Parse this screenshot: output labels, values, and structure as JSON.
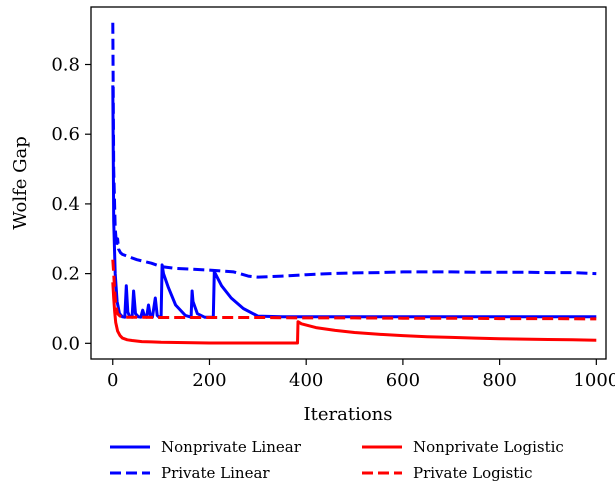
{
  "chart_data": {
    "type": "line",
    "xlabel": "Iterations",
    "ylabel": "Wolfe Gap",
    "xlim": [
      -45,
      1020
    ],
    "ylim": [
      -0.045,
      0.965
    ],
    "x_ticks": [
      0,
      200,
      400,
      600,
      800,
      1000
    ],
    "x_tick_labels": [
      "0",
      "200",
      "400",
      "600",
      "800",
      "1000"
    ],
    "y_ticks": [
      0.0,
      0.2,
      0.4,
      0.6,
      0.8
    ],
    "y_tick_labels": [
      "0.0",
      "0.2",
      "0.4",
      "0.6",
      "0.8"
    ],
    "grid": false,
    "legend_position": "below",
    "series": [
      {
        "name": "Nonprivate Linear",
        "color": "#0000ff",
        "style": "solid",
        "x": [
          0,
          2,
          5,
          9,
          14,
          20,
          25,
          28,
          31,
          35,
          40,
          43,
          47,
          53,
          58,
          62,
          66,
          70,
          74,
          78,
          82,
          88,
          92,
          96,
          100,
          102,
          105,
          115,
          130,
          150,
          162,
          164,
          166,
          175,
          190,
          208,
          210,
          212,
          225,
          245,
          270,
          300,
          350,
          400,
          500,
          600,
          700,
          800,
          900,
          1000
        ],
        "y": [
          0.74,
          0.35,
          0.2,
          0.12,
          0.085,
          0.076,
          0.075,
          0.165,
          0.09,
          0.076,
          0.075,
          0.15,
          0.085,
          0.076,
          0.075,
          0.095,
          0.076,
          0.075,
          0.11,
          0.076,
          0.075,
          0.13,
          0.08,
          0.075,
          0.075,
          0.225,
          0.2,
          0.16,
          0.11,
          0.08,
          0.075,
          0.15,
          0.12,
          0.085,
          0.075,
          0.075,
          0.205,
          0.2,
          0.165,
          0.13,
          0.1,
          0.078,
          0.076,
          0.076,
          0.076,
          0.076,
          0.076,
          0.076,
          0.076,
          0.076
        ]
      },
      {
        "name": "Private Linear",
        "color": "#0000ff",
        "style": "dashed",
        "x": [
          0,
          2,
          5,
          8,
          10,
          12,
          16,
          20,
          30,
          50,
          80,
          100,
          130,
          160,
          200,
          230,
          250,
          280,
          300,
          350,
          400,
          450,
          500,
          550,
          600,
          650,
          700,
          750,
          800,
          850,
          900,
          950,
          1000
        ],
        "y": [
          0.92,
          0.5,
          0.33,
          0.28,
          0.3,
          0.27,
          0.26,
          0.255,
          0.25,
          0.24,
          0.23,
          0.22,
          0.215,
          0.213,
          0.21,
          0.207,
          0.205,
          0.193,
          0.19,
          0.193,
          0.197,
          0.2,
          0.202,
          0.203,
          0.205,
          0.205,
          0.205,
          0.204,
          0.204,
          0.204,
          0.203,
          0.203,
          0.2
        ]
      },
      {
        "name": "Nonprivate Logistic",
        "color": "#ff0000",
        "style": "solid",
        "x": [
          0,
          2,
          4,
          6,
          10,
          15,
          20,
          30,
          40,
          60,
          80,
          100,
          150,
          200,
          250,
          300,
          350,
          382,
          383,
          390,
          420,
          460,
          500,
          550,
          600,
          650,
          700,
          750,
          800,
          850,
          900,
          950,
          1000
        ],
        "y": [
          0.175,
          0.13,
          0.09,
          0.06,
          0.035,
          0.022,
          0.015,
          0.01,
          0.008,
          0.005,
          0.004,
          0.003,
          0.002,
          0.001,
          0.001,
          0.001,
          0.001,
          0.001,
          0.062,
          0.056,
          0.045,
          0.037,
          0.031,
          0.026,
          0.022,
          0.019,
          0.017,
          0.015,
          0.013,
          0.012,
          0.011,
          0.01,
          0.009
        ]
      },
      {
        "name": "Private Logistic",
        "color": "#ff0000",
        "style": "dashed",
        "x": [
          0,
          2,
          4,
          6,
          10,
          15,
          20,
          30,
          50,
          100,
          200,
          300,
          400,
          500,
          600,
          700,
          800,
          900,
          1000
        ],
        "y": [
          0.24,
          0.2,
          0.15,
          0.11,
          0.085,
          0.078,
          0.076,
          0.075,
          0.075,
          0.074,
          0.074,
          0.074,
          0.073,
          0.073,
          0.072,
          0.072,
          0.071,
          0.071,
          0.07
        ]
      }
    ],
    "legend": [
      {
        "label": "Nonprivate Linear",
        "color": "#0000ff",
        "style": "solid"
      },
      {
        "label": "Private Linear",
        "color": "#0000ff",
        "style": "dashed"
      },
      {
        "label": "Nonprivate Logistic",
        "color": "#ff0000",
        "style": "solid"
      },
      {
        "label": "Private Logistic",
        "color": "#ff0000",
        "style": "dashed"
      }
    ]
  }
}
